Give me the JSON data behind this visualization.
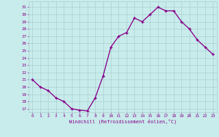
{
  "x": [
    0,
    1,
    2,
    3,
    4,
    5,
    6,
    7,
    8,
    9,
    10,
    11,
    12,
    13,
    14,
    15,
    16,
    17,
    18,
    19,
    20,
    21,
    22,
    23
  ],
  "y": [
    21.0,
    20.0,
    19.5,
    18.5,
    18.0,
    17.0,
    16.8,
    16.7,
    18.5,
    21.5,
    25.5,
    27.0,
    27.5,
    29.5,
    29.0,
    30.0,
    31.0,
    30.5,
    30.5,
    29.0,
    28.0,
    26.5,
    25.5,
    24.5
  ],
  "xlim": [
    -0.5,
    23.5
  ],
  "ylim": [
    16.5,
    31.8
  ],
  "yticks": [
    17,
    18,
    19,
    20,
    21,
    22,
    23,
    24,
    25,
    26,
    27,
    28,
    29,
    30,
    31
  ],
  "xticks": [
    0,
    1,
    2,
    3,
    4,
    5,
    6,
    7,
    8,
    9,
    10,
    11,
    12,
    13,
    14,
    15,
    16,
    17,
    18,
    19,
    20,
    21,
    22,
    23
  ],
  "xlabel": "Windchill (Refroidissement éolien,°C)",
  "line_color": "#880088",
  "marker": "+",
  "bg_color": "#c8ecec",
  "grid_color": "#aacccc",
  "tick_color": "#880088",
  "font_family": "monospace",
  "marker_size": 3.5,
  "linewidth": 1.0
}
